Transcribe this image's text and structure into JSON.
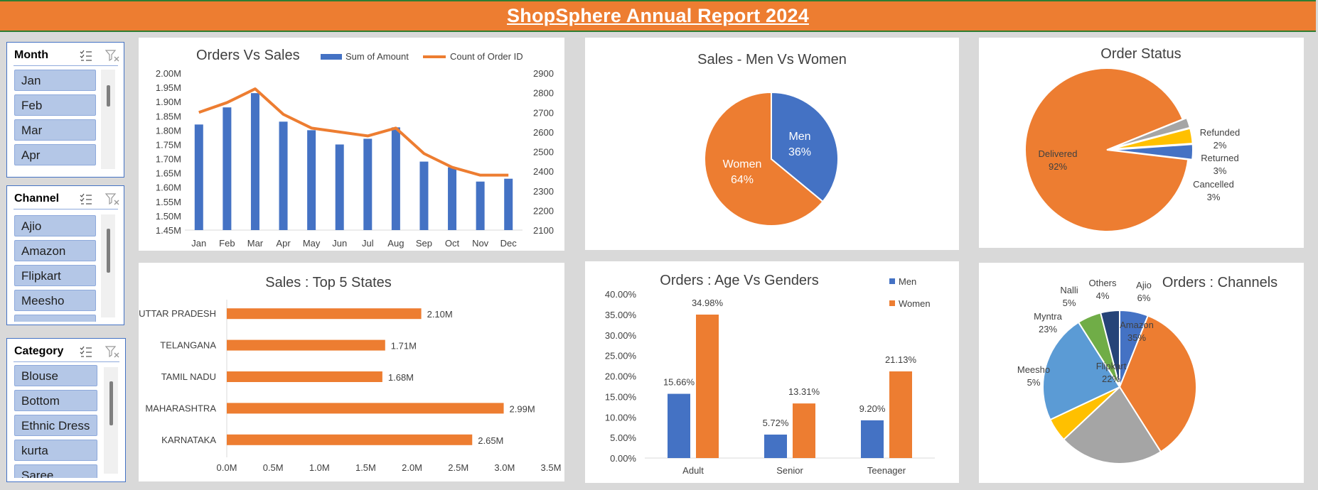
{
  "header": {
    "title": "ShopSphere  Annual Report 2024"
  },
  "colors": {
    "orange": "#ed7d31",
    "blue": "#4472c4",
    "gray": "#a5a5a5",
    "yellow": "#ffc000",
    "lightblue": "#5b9bd5",
    "green": "#70ad47",
    "navy": "#264478"
  },
  "slicers": {
    "month": {
      "title": "Month",
      "items": [
        "Jan",
        "Feb",
        "Mar",
        "Apr"
      ],
      "icons": [
        "multi-select-icon",
        "clear-filter-icon"
      ]
    },
    "channel": {
      "title": "Channel",
      "items": [
        "Ajio",
        "Amazon",
        "Flipkart",
        "Meesho",
        ""
      ],
      "icons": [
        "multi-select-icon",
        "clear-filter-icon"
      ]
    },
    "category": {
      "title": "Category",
      "items": [
        "Blouse",
        "Bottom",
        "Ethnic Dress",
        "kurta",
        "Saree"
      ],
      "icons": [
        "multi-select-icon",
        "clear-filter-icon"
      ]
    }
  },
  "chart_data": [
    {
      "id": "orders_vs_sales",
      "type": "bar+line",
      "title": "Orders Vs Sales",
      "categories": [
        "Jan",
        "Feb",
        "Mar",
        "Apr",
        "May",
        "Jun",
        "Jul",
        "Aug",
        "Sep",
        "Oct",
        "Nov",
        "Dec"
      ],
      "series": [
        {
          "name": "Sum of Amount",
          "type": "bar",
          "axis": "left",
          "values": [
            1.82,
            1.88,
            1.93,
            1.83,
            1.8,
            1.75,
            1.77,
            1.81,
            1.69,
            1.67,
            1.62,
            1.63
          ]
        },
        {
          "name": "Count of Order ID",
          "type": "line",
          "axis": "right",
          "values": [
            2700,
            2750,
            2820,
            2690,
            2620,
            2600,
            2580,
            2620,
            2490,
            2420,
            2380,
            2380
          ]
        }
      ],
      "y_left": {
        "min": 1.45,
        "max": 2.0,
        "ticks": [
          "2.00M",
          "1.95M",
          "1.90M",
          "1.85M",
          "1.80M",
          "1.75M",
          "1.70M",
          "1.65M",
          "1.60M",
          "1.55M",
          "1.50M",
          "1.45M"
        ]
      },
      "y_right": {
        "min": 2100,
        "max": 2900,
        "ticks": [
          "2900",
          "2800",
          "2700",
          "2600",
          "2500",
          "2400",
          "2300",
          "2200",
          "2100"
        ]
      },
      "legend": "top"
    },
    {
      "id": "sales_men_women",
      "type": "pie",
      "title": "Sales - Men Vs Women",
      "slices": [
        {
          "name": "Men",
          "value": 36,
          "label": "36%"
        },
        {
          "name": "Women",
          "value": 64,
          "label": "64%"
        }
      ]
    },
    {
      "id": "order_status",
      "type": "pie",
      "title": "Order Status",
      "slices": [
        {
          "name": "Delivered",
          "value": 92,
          "label": "92%"
        },
        {
          "name": "Refunded",
          "value": 2,
          "label": "2%"
        },
        {
          "name": "Returned",
          "value": 3,
          "label": "3%"
        },
        {
          "name": "Cancelled",
          "value": 3,
          "label": "3%"
        }
      ]
    },
    {
      "id": "top5_states",
      "type": "bar",
      "orientation": "horizontal",
      "title": "Sales : Top 5 States",
      "categories": [
        "UTTAR PRADESH",
        "TELANGANA",
        "TAMIL NADU",
        "MAHARASHTRA",
        "KARNATAKA"
      ],
      "values": [
        2.1,
        1.71,
        1.68,
        2.99,
        2.65
      ],
      "labels": [
        "2.10M",
        "1.71M",
        "1.68M",
        "2.99M",
        "2.65M"
      ],
      "x_ticks": [
        "0.0M",
        "0.5M",
        "1.0M",
        "1.5M",
        "2.0M",
        "2.5M",
        "3.0M",
        "3.5M"
      ],
      "xlim": [
        0,
        3.5
      ]
    },
    {
      "id": "age_vs_genders",
      "type": "bar",
      "title": "Orders : Age Vs Genders",
      "categories": [
        "Adult",
        "Senior",
        "Teenager"
      ],
      "series": [
        {
          "name": "Men",
          "values": [
            15.66,
            5.72,
            9.2
          ],
          "labels": [
            "15.66%",
            "5.72%",
            "9.20%"
          ]
        },
        {
          "name": "Women",
          "values": [
            34.98,
            13.31,
            21.13
          ],
          "labels": [
            "34.98%",
            "13.31%",
            "21.13%"
          ]
        }
      ],
      "y_ticks": [
        "40.00%",
        "35.00%",
        "30.00%",
        "25.00%",
        "20.00%",
        "15.00%",
        "10.00%",
        "5.00%",
        "0.00%"
      ],
      "ylim": [
        0,
        40
      ],
      "legend": "top-right"
    },
    {
      "id": "orders_channels",
      "type": "pie",
      "title": "Orders : Channels",
      "slices": [
        {
          "name": "Ajio",
          "value": 6,
          "label": "6%"
        },
        {
          "name": "Amazon",
          "value": 35,
          "label": "35%"
        },
        {
          "name": "Flipkart",
          "value": 22,
          "label": "22%"
        },
        {
          "name": "Meesho",
          "value": 5,
          "label": "5%"
        },
        {
          "name": "Myntra",
          "value": 23,
          "label": "23%"
        },
        {
          "name": "Nalli",
          "value": 5,
          "label": "5%"
        },
        {
          "name": "Others",
          "value": 4,
          "label": "4%"
        }
      ]
    }
  ]
}
